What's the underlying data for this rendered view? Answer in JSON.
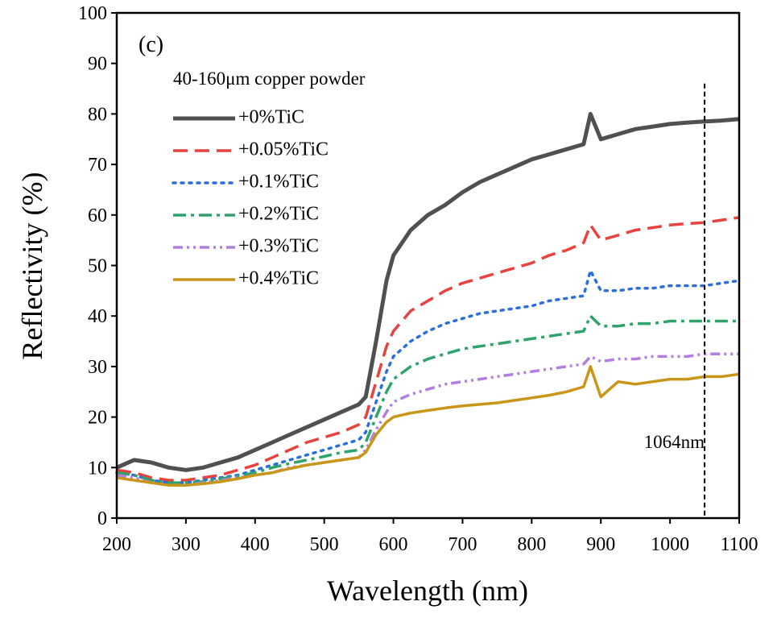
{
  "chart_data": {
    "type": "line",
    "panel_label": "(c)",
    "legend_title": "40-160μm copper powder",
    "legend": "upper left",
    "x_label": "Wavelength (nm)",
    "y_label": "Reflectivity (%)",
    "xlim": [
      200,
      1100
    ],
    "ylim": [
      0,
      100
    ],
    "xticks": [
      200,
      300,
      400,
      500,
      600,
      700,
      800,
      900,
      1000,
      1100
    ],
    "yticks": [
      0,
      10,
      20,
      30,
      40,
      50,
      60,
      70,
      80,
      90,
      100
    ],
    "marker_line": {
      "x": 1050,
      "y_top": 86,
      "label": "1064nm"
    },
    "x": [
      200,
      225,
      250,
      275,
      300,
      325,
      350,
      375,
      400,
      425,
      450,
      475,
      500,
      525,
      550,
      560,
      575,
      590,
      600,
      625,
      650,
      675,
      700,
      725,
      750,
      775,
      800,
      825,
      850,
      875,
      885,
      900,
      925,
      950,
      975,
      1000,
      1025,
      1050,
      1075,
      1100
    ],
    "series": [
      {
        "name": "+0%TiC",
        "color": "#505050",
        "dash": "solid",
        "values": [
          10,
          11.5,
          11,
          10,
          9.5,
          10,
          11,
          12,
          13.5,
          15,
          16.5,
          18,
          19.5,
          21,
          22.5,
          24,
          35,
          47,
          52,
          57,
          60,
          62,
          64.5,
          66.5,
          68,
          69.5,
          71,
          72,
          73,
          74,
          80,
          75,
          76,
          77,
          77.5,
          78,
          78.3,
          78.5,
          78.7,
          79
        ]
      },
      {
        "name": "+0.05%TiC",
        "color": "#e8423f",
        "dash": "dashed",
        "values": [
          9.5,
          9,
          8,
          7.5,
          7.5,
          8,
          8.5,
          9.5,
          10.5,
          12,
          13.5,
          15,
          16,
          17,
          18.5,
          20,
          27,
          34,
          37,
          41,
          43,
          45,
          46.5,
          47.5,
          48.5,
          49.5,
          50.5,
          52,
          53,
          54.5,
          58,
          55,
          56,
          57,
          57.5,
          58,
          58.3,
          58.5,
          59,
          59.5
        ]
      },
      {
        "name": "+0.1%TiC",
        "color": "#2a6fdb",
        "dash": "dotted",
        "values": [
          9,
          8.5,
          7.5,
          7,
          7,
          7.5,
          8,
          8.5,
          9.5,
          10.5,
          11.5,
          12.5,
          13.5,
          14.5,
          15.5,
          17,
          23,
          29,
          32,
          35,
          37,
          38.5,
          39.5,
          40.5,
          41,
          41.5,
          42,
          43,
          43.5,
          44,
          49,
          45,
          45,
          45.5,
          45.5,
          46,
          46,
          46,
          46.5,
          47
        ]
      },
      {
        "name": "+0.2%TiC",
        "color": "#2ea36b",
        "dash": "dashdot",
        "values": [
          9,
          8.5,
          7.5,
          7,
          7,
          7.2,
          7.8,
          8.3,
          9,
          10,
          10.8,
          11.5,
          12.2,
          13,
          13.5,
          15,
          20,
          25,
          27.5,
          30,
          31.5,
          32.5,
          33.5,
          34,
          34.5,
          35,
          35.5,
          36,
          36.5,
          37,
          40,
          38,
          38,
          38.5,
          38.5,
          39,
          39,
          39,
          39,
          39
        ]
      },
      {
        "name": "+0.3%TiC",
        "color": "#b27fe0",
        "dash": "dashdotdot",
        "values": [
          8.5,
          8,
          7,
          6.5,
          6.5,
          7,
          7.5,
          8,
          8.5,
          9,
          10,
          10.5,
          11,
          11.5,
          12,
          13.5,
          17.5,
          21,
          23,
          24.5,
          25.5,
          26.5,
          27,
          27.5,
          28,
          28.5,
          29,
          29.5,
          30,
          30.5,
          32,
          31,
          31.5,
          31.5,
          32,
          32,
          32,
          32.5,
          32.5,
          32.5
        ]
      },
      {
        "name": "+0.4%TiC",
        "color": "#c9961a",
        "dash": "solid",
        "values": [
          8,
          7.5,
          7,
          6.5,
          6.5,
          6.8,
          7.2,
          7.8,
          8.5,
          9,
          9.8,
          10.5,
          11,
          11.5,
          12,
          13,
          16.5,
          19,
          20,
          20.8,
          21.3,
          21.8,
          22.2,
          22.5,
          22.8,
          23.3,
          23.8,
          24.3,
          25,
          26,
          30,
          24,
          27,
          26.5,
          27,
          27.5,
          27.5,
          28,
          28,
          28.5
        ]
      }
    ]
  }
}
